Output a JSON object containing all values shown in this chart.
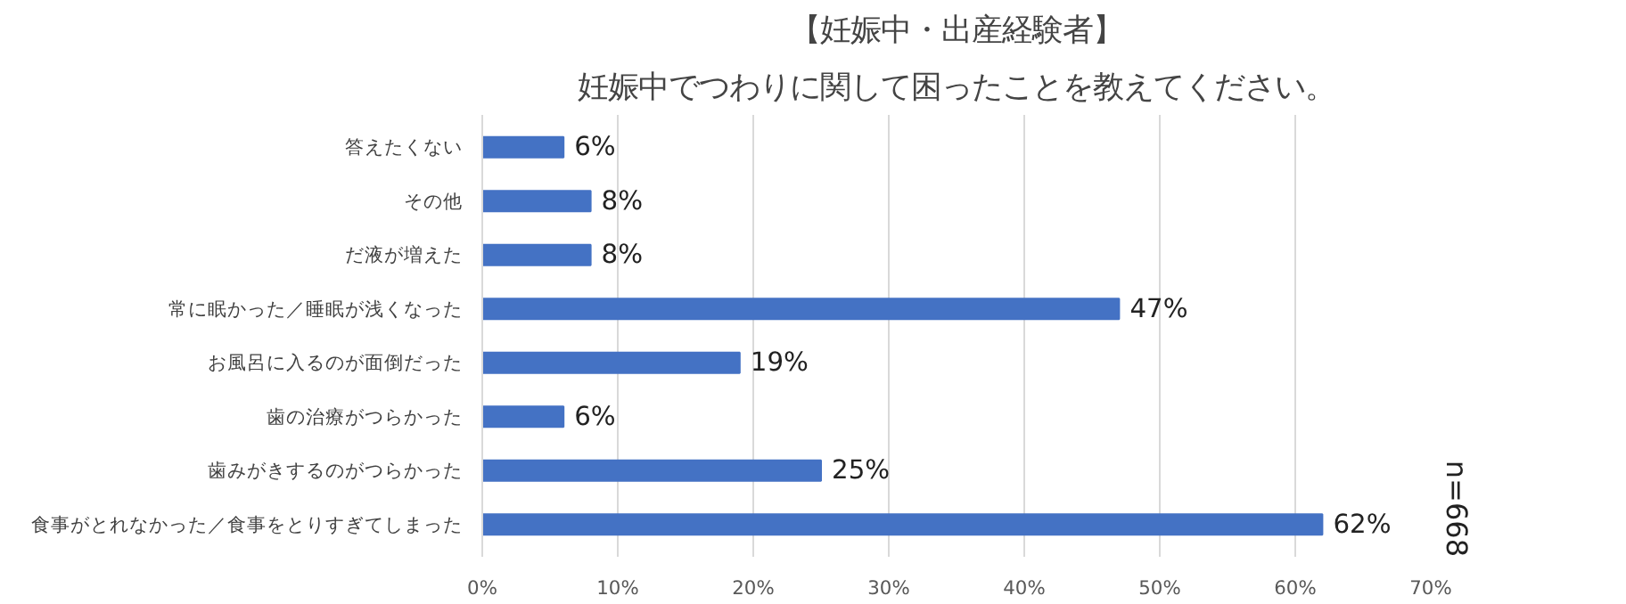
{
  "chart_data": {
    "type": "bar",
    "orientation": "horizontal",
    "title": "【妊娠中・出産経験者】",
    "subtitle": "妊娠中でつわりに関して困ったことを教えてください。",
    "categories": [
      "答えたくない",
      "その他",
      "だ液が増えた",
      "常に眠かった／睡眠が浅くなった",
      "お風呂に入るのが面倒だった",
      "歯の治療がつらかった",
      "歯みがきするのがつらかった",
      "食事がとれなかった／食事をとりすぎてしまった"
    ],
    "values": [
      6,
      8,
      8,
      47,
      19,
      6,
      25,
      62
    ],
    "value_labels": [
      "6%",
      "8%",
      "8%",
      "47%",
      "19%",
      "6%",
      "25%",
      "62%"
    ],
    "color": "#4472c4",
    "xlim": [
      0,
      70
    ],
    "xticks": [
      {
        "value": 0,
        "label": "0%"
      },
      {
        "value": 10,
        "label": "10%"
      },
      {
        "value": 20,
        "label": "20%"
      },
      {
        "value": 30,
        "label": "30%"
      },
      {
        "value": 40,
        "label": "40%"
      },
      {
        "value": 50,
        "label": "50%"
      },
      {
        "value": 60,
        "label": "60%"
      },
      {
        "value": 70,
        "label": "70%"
      }
    ],
    "grid": "x",
    "annotations": [
      "n=668"
    ]
  }
}
